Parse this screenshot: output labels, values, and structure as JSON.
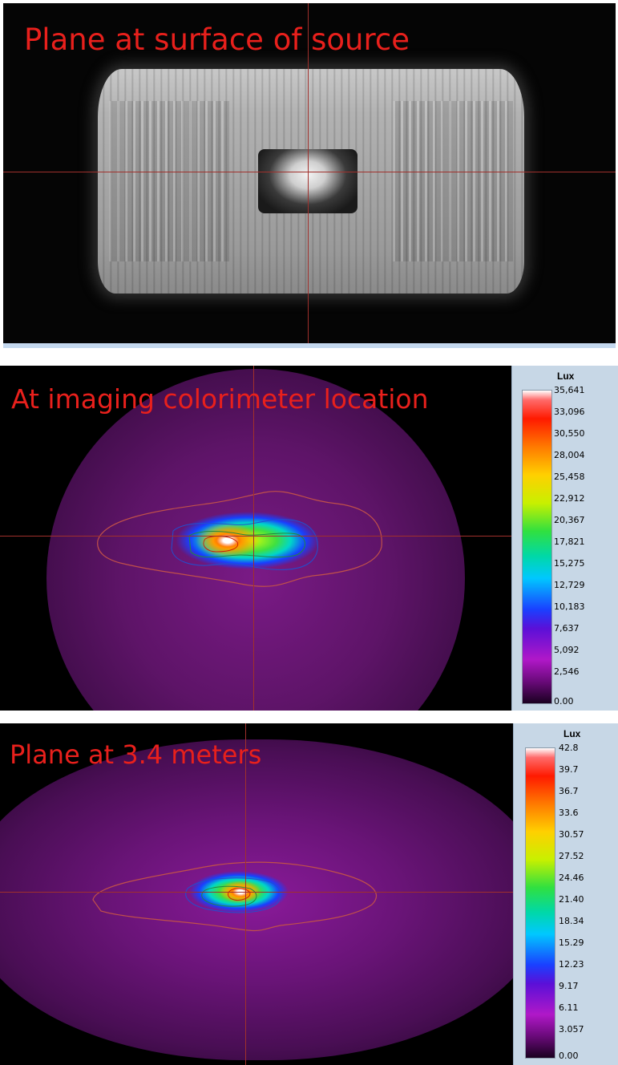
{
  "panels": [
    {
      "title": "Plane at surface of source"
    },
    {
      "title": "At imaging colorimeter location",
      "legend": {
        "title": "Lux",
        "ticks": [
          "35,641",
          "33,096",
          "30,550",
          "28,004",
          "25,458",
          "22,912",
          "20,367",
          "17,821",
          "15,275",
          "12,729",
          "10,183",
          "7,637",
          "5,092",
          "2,546",
          "0.00"
        ]
      }
    },
    {
      "title": "Plane at 3.4 meters",
      "legend": {
        "title": "Lux",
        "ticks": [
          "42.8",
          "39.7",
          "36.7",
          "33.6",
          "30.57",
          "27.52",
          "24.46",
          "21.40",
          "18.34",
          "15.29",
          "12.23",
          "9.17",
          "6.11",
          "3.057",
          "0.00"
        ]
      }
    }
  ],
  "colors": {
    "title_text": "#e8201c",
    "crosshair": "#a0302c",
    "legend_background": "#c7d7e6"
  }
}
